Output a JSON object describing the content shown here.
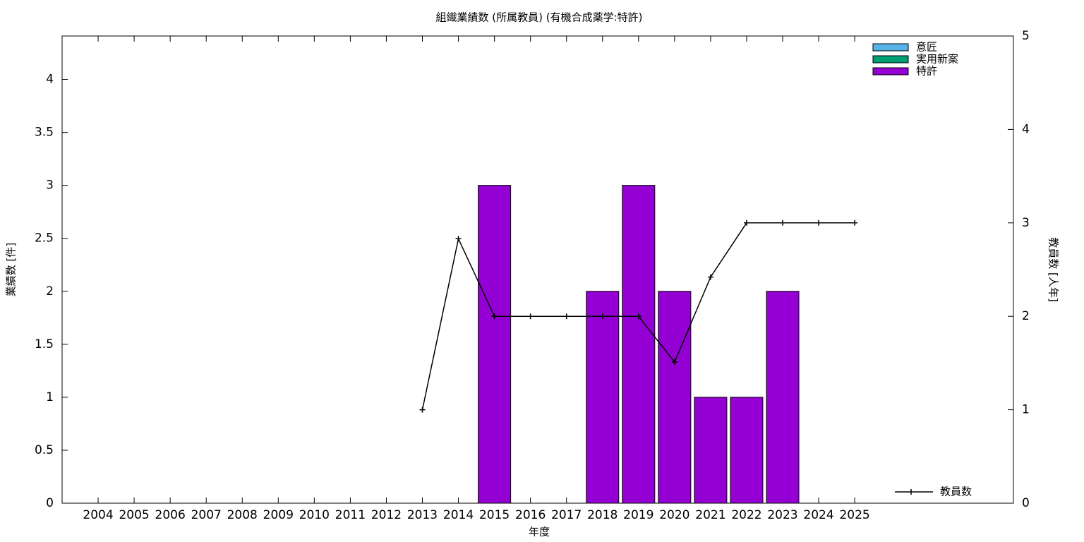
{
  "chart_data": {
    "type": "bar",
    "title": "組織業績数 (所属教員) (有機合成薬学:特許)",
    "xlabel": "年度",
    "ylabel": "業績数 [件]",
    "y2label": "教員数 [人年]",
    "categories": [
      "2004",
      "2005",
      "2006",
      "2007",
      "2008",
      "2009",
      "2010",
      "2011",
      "2012",
      "2013",
      "2014",
      "2015",
      "2016",
      "2017",
      "2018",
      "2019",
      "2020",
      "2021",
      "2022",
      "2023",
      "2024",
      "2025"
    ],
    "series": [
      {
        "name": "意匠",
        "color": "#56b4e9",
        "values": [
          0,
          0,
          0,
          0,
          0,
          0,
          0,
          0,
          0,
          0,
          0,
          0,
          0,
          0,
          0,
          0,
          0,
          0,
          0,
          0,
          0,
          0
        ]
      },
      {
        "name": "実用新案",
        "color": "#009e73",
        "values": [
          0,
          0,
          0,
          0,
          0,
          0,
          0,
          0,
          0,
          0,
          0,
          0,
          0,
          0,
          0,
          0,
          0,
          0,
          0,
          0,
          0,
          0
        ]
      },
      {
        "name": "特許",
        "color": "#9400d3",
        "values": [
          0,
          0,
          0,
          0,
          0,
          0,
          0,
          0,
          0,
          0,
          0,
          3,
          0,
          0,
          2,
          3,
          2,
          1,
          1,
          2,
          0,
          0
        ]
      },
      {
        "name": "教員数",
        "type": "line",
        "axis": "y2",
        "color": "#000000",
        "values": [
          null,
          null,
          null,
          null,
          null,
          null,
          null,
          null,
          null,
          1,
          2.83,
          2,
          2,
          2,
          2,
          2,
          1.51,
          2.42,
          3,
          3,
          3,
          3
        ]
      }
    ],
    "ylim": [
      0,
      4.41
    ],
    "yticks": [
      0,
      0.5,
      1,
      1.5,
      2,
      2.5,
      3,
      3.5,
      4
    ],
    "y2lim": [
      0,
      5
    ],
    "y2ticks": [
      0,
      1,
      2,
      3,
      4,
      5
    ],
    "stacked": true,
    "legend": "top-right"
  }
}
